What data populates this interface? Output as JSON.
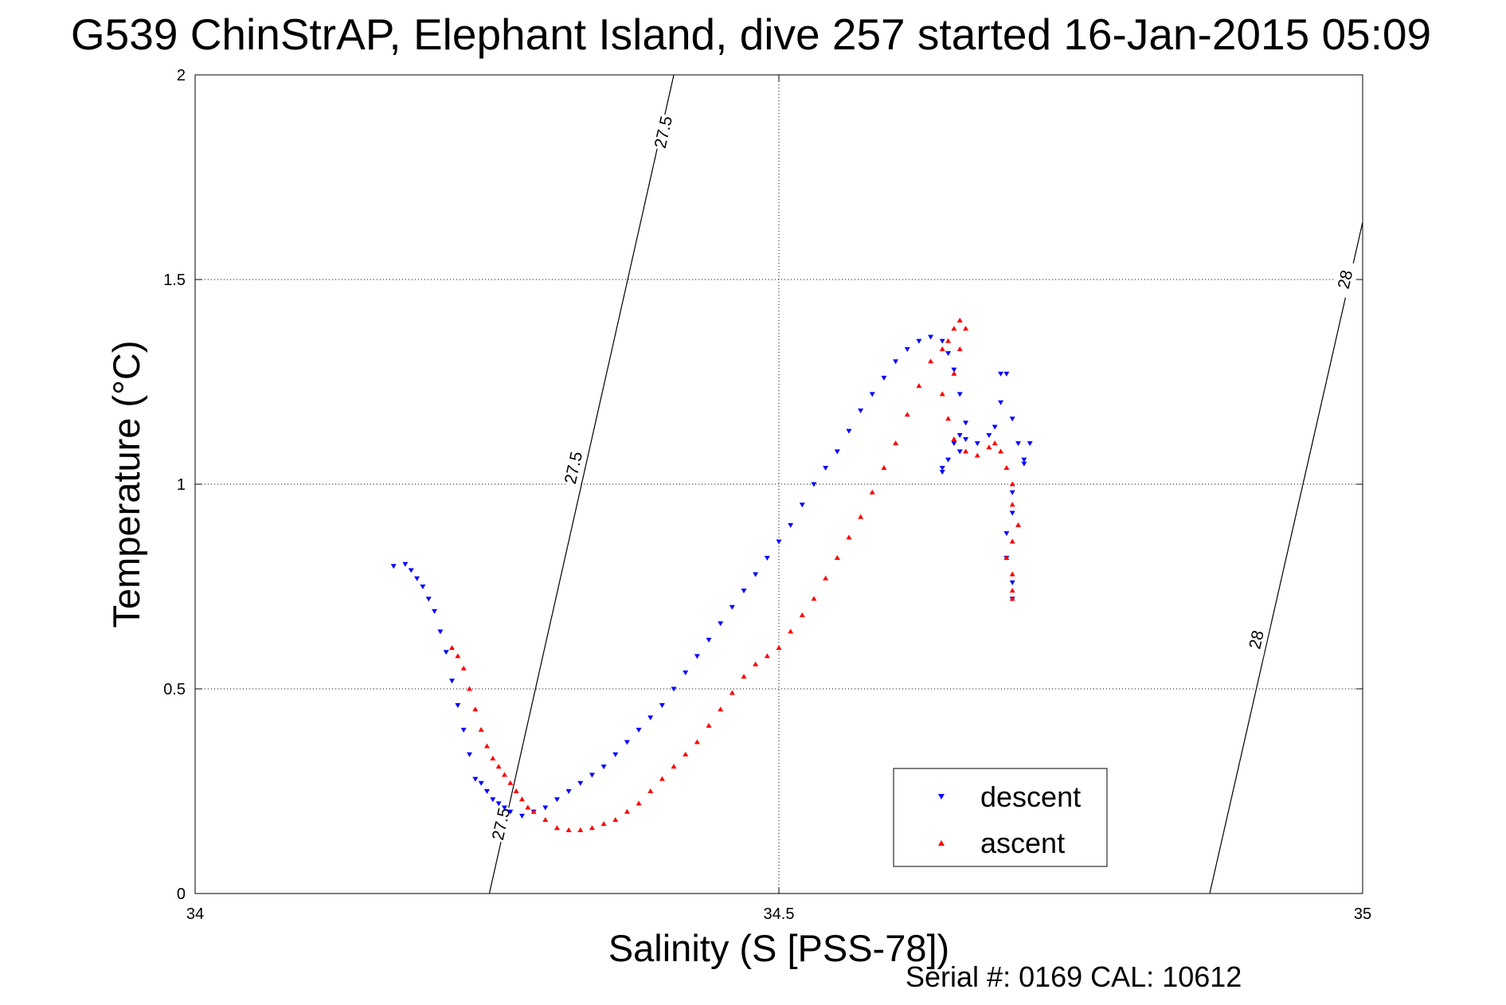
{
  "chart_data": {
    "type": "scatter",
    "title": "G539 ChinStrAP, Elephant Island, dive 257 started 16-Jan-2015 05:09",
    "xlabel": "Salinity (S [PSS-78])",
    "ylabel": "Temperature (°C)",
    "xlim": [
      34,
      35
    ],
    "ylim": [
      0,
      2
    ],
    "xticks": [
      34,
      34.5,
      35
    ],
    "xtick_labels": [
      "34",
      "34.5",
      "35"
    ],
    "yticks": [
      0,
      0.5,
      1,
      1.5,
      2
    ],
    "ytick_labels": [
      "0",
      "0.5",
      "1",
      "1.5",
      "2"
    ],
    "grid": true,
    "legend_position": "lower-right",
    "contours": [
      {
        "label": "27.5",
        "points": [
          [
            34.252,
            0.0
          ],
          [
            34.41,
            2.0
          ]
        ],
        "label_positions": [
          [
            34.262,
            0.17
          ],
          [
            34.324,
            1.04
          ],
          [
            34.401,
            1.86
          ]
        ]
      },
      {
        "label": "28",
        "points": [
          [
            34.869,
            0.0
          ],
          [
            35.0,
            1.64
          ]
        ],
        "label_positions": [
          [
            34.909,
            0.62
          ],
          [
            34.985,
            1.5
          ]
        ]
      }
    ],
    "series": [
      {
        "name": "descent",
        "color": "#0000ff",
        "marker": "triangle-down",
        "x": [
          34.17,
          34.18,
          34.185,
          34.19,
          34.195,
          34.2,
          34.205,
          34.21,
          34.215,
          34.22,
          34.225,
          34.23,
          34.235,
          34.24,
          34.245,
          34.25,
          34.255,
          34.26,
          34.265,
          34.27,
          34.28,
          34.29,
          34.3,
          34.31,
          34.32,
          34.33,
          34.34,
          34.35,
          34.36,
          34.37,
          34.38,
          34.39,
          34.4,
          34.41,
          34.42,
          34.43,
          34.44,
          34.45,
          34.46,
          34.47,
          34.48,
          34.49,
          34.5,
          34.51,
          34.52,
          34.53,
          34.54,
          34.55,
          34.56,
          34.57,
          34.58,
          34.59,
          34.6,
          34.61,
          34.62,
          34.63,
          34.64,
          34.645,
          34.65,
          34.655,
          34.66,
          34.655,
          34.64,
          34.64,
          34.645,
          34.65,
          34.655,
          34.66,
          34.67,
          34.68,
          34.685,
          34.69,
          34.695,
          34.69,
          34.7,
          34.705,
          34.71,
          34.715,
          34.71,
          34.7,
          34.7,
          34.695,
          34.695,
          34.7,
          34.7
        ],
        "y": [
          0.8,
          0.805,
          0.79,
          0.77,
          0.75,
          0.72,
          0.69,
          0.64,
          0.59,
          0.52,
          0.46,
          0.4,
          0.34,
          0.28,
          0.27,
          0.25,
          0.23,
          0.22,
          0.21,
          0.2,
          0.19,
          0.2,
          0.21,
          0.23,
          0.25,
          0.27,
          0.29,
          0.31,
          0.34,
          0.37,
          0.4,
          0.43,
          0.46,
          0.5,
          0.54,
          0.58,
          0.62,
          0.66,
          0.7,
          0.74,
          0.78,
          0.82,
          0.86,
          0.9,
          0.95,
          1.0,
          1.04,
          1.08,
          1.13,
          1.18,
          1.22,
          1.26,
          1.3,
          1.33,
          1.35,
          1.36,
          1.35,
          1.32,
          1.28,
          1.22,
          1.15,
          1.08,
          1.04,
          1.03,
          1.06,
          1.1,
          1.12,
          1.11,
          1.1,
          1.12,
          1.14,
          1.2,
          1.27,
          1.27,
          1.16,
          1.1,
          1.06,
          1.1,
          1.05,
          0.98,
          0.93,
          0.88,
          0.82,
          0.76,
          0.72
        ]
      },
      {
        "name": "ascent",
        "color": "#ff0000",
        "marker": "triangle-up",
        "x": [
          34.22,
          34.225,
          34.23,
          34.235,
          34.24,
          34.245,
          34.25,
          34.255,
          34.26,
          34.265,
          34.27,
          34.275,
          34.28,
          34.285,
          34.29,
          34.3,
          34.31,
          34.32,
          34.33,
          34.34,
          34.35,
          34.36,
          34.37,
          34.38,
          34.39,
          34.4,
          34.41,
          34.42,
          34.43,
          34.44,
          34.45,
          34.46,
          34.47,
          34.48,
          34.49,
          34.5,
          34.51,
          34.52,
          34.53,
          34.54,
          34.55,
          34.56,
          34.57,
          34.58,
          34.59,
          34.6,
          34.61,
          34.62,
          34.63,
          34.64,
          34.645,
          34.65,
          34.655,
          34.66,
          34.655,
          34.65,
          34.64,
          34.645,
          34.65,
          34.66,
          34.67,
          34.68,
          34.685,
          34.69,
          34.695,
          34.7,
          34.7,
          34.705,
          34.7,
          34.695,
          34.7,
          34.7,
          34.7
        ],
        "y": [
          0.6,
          0.58,
          0.55,
          0.5,
          0.45,
          0.4,
          0.36,
          0.33,
          0.31,
          0.29,
          0.27,
          0.25,
          0.23,
          0.21,
          0.2,
          0.18,
          0.16,
          0.155,
          0.155,
          0.16,
          0.17,
          0.18,
          0.2,
          0.22,
          0.25,
          0.28,
          0.31,
          0.34,
          0.37,
          0.41,
          0.45,
          0.49,
          0.53,
          0.56,
          0.58,
          0.6,
          0.64,
          0.68,
          0.72,
          0.77,
          0.82,
          0.87,
          0.92,
          0.98,
          1.04,
          1.1,
          1.17,
          1.24,
          1.3,
          1.33,
          1.35,
          1.38,
          1.4,
          1.38,
          1.33,
          1.27,
          1.22,
          1.16,
          1.11,
          1.08,
          1.07,
          1.09,
          1.1,
          1.08,
          1.04,
          1.0,
          0.95,
          0.9,
          0.86,
          0.82,
          0.78,
          0.74,
          0.72
        ]
      }
    ]
  },
  "legend": {
    "descent": "descent",
    "ascent": "ascent"
  },
  "footer": {
    "serial": "Serial #: 0169 CAL: 10612"
  }
}
